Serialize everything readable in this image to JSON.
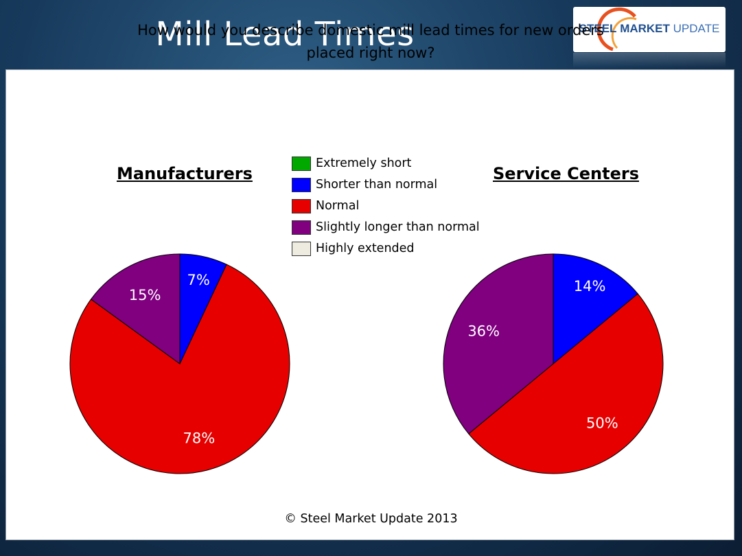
{
  "header": {
    "title": "Mill Lead Times",
    "logo": {
      "text_a": "STEEL",
      "text_b": "MARKET",
      "text_c": "UPDATE"
    }
  },
  "question_lines": [
    "How would you describe domestic mill lead times for new orders",
    "placed right now?"
  ],
  "footer": "© Steel Market Update 2013",
  "chart_data": {
    "type": "pie",
    "legend": [
      {
        "label": "Extremely short",
        "color": "#00a800"
      },
      {
        "label": "Shorter than normal",
        "color": "#0000ff"
      },
      {
        "label": "Normal",
        "color": "#e60000"
      },
      {
        "label": "Slightly longer than normal",
        "color": "#800080"
      },
      {
        "label": "Highly extended",
        "color": "#eeece1"
      }
    ],
    "charts": [
      {
        "title": "Manufacturers",
        "slices": [
          {
            "category": "Extremely short",
            "value": 0,
            "label": ""
          },
          {
            "category": "Shorter than normal",
            "value": 7,
            "label": "7%"
          },
          {
            "category": "Normal",
            "value": 78,
            "label": "78%"
          },
          {
            "category": "Slightly longer than normal",
            "value": 15,
            "label": "15%"
          },
          {
            "category": "Highly extended",
            "value": 0,
            "label": ""
          }
        ]
      },
      {
        "title": "Service Centers",
        "slices": [
          {
            "category": "Extremely short",
            "value": 0,
            "label": ""
          },
          {
            "category": "Shorter than normal",
            "value": 14,
            "label": "14%"
          },
          {
            "category": "Normal",
            "value": 50,
            "label": "50%"
          },
          {
            "category": "Slightly longer than normal",
            "value": 36,
            "label": "36%"
          },
          {
            "category": "Highly extended",
            "value": 0,
            "label": ""
          }
        ]
      }
    ]
  }
}
